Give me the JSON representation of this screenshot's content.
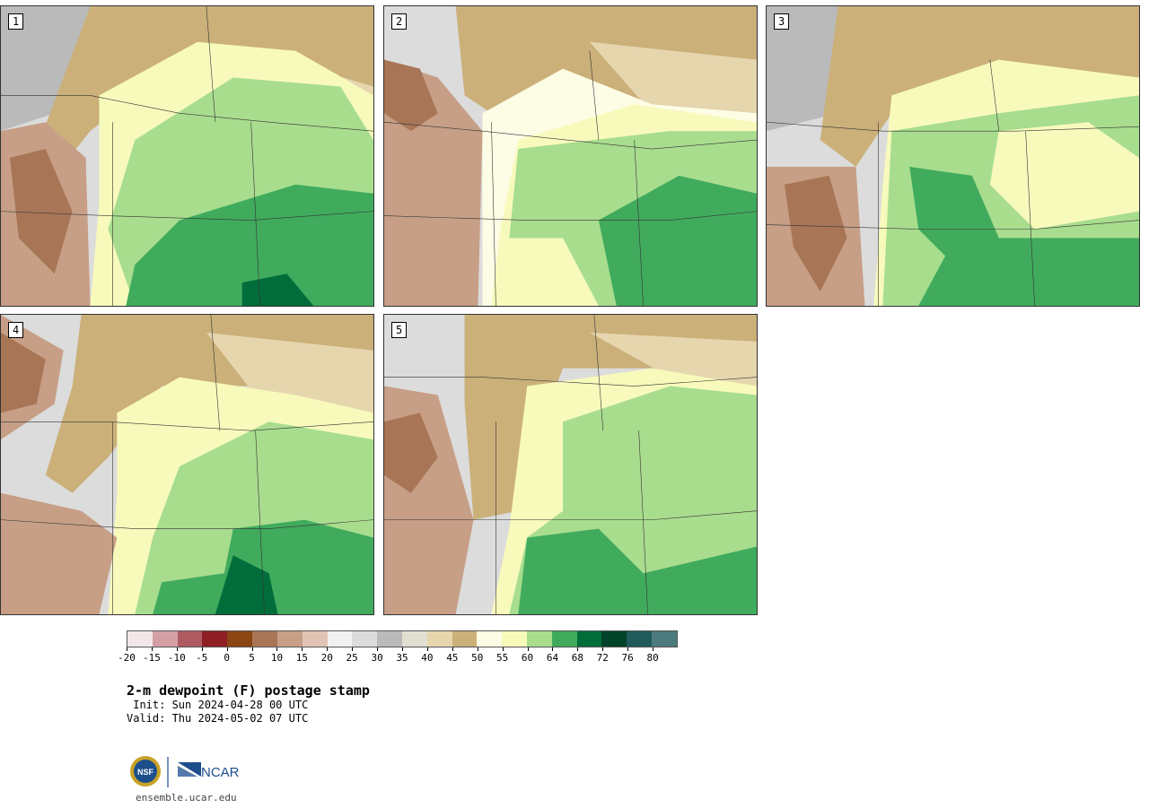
{
  "panels": [
    {
      "label": "1"
    },
    {
      "label": "2"
    },
    {
      "label": "3"
    },
    {
      "label": "4"
    },
    {
      "label": "5"
    }
  ],
  "colorbar": {
    "colors": [
      "#f3e6e8",
      "#d4a0a6",
      "#b05a62",
      "#8e1f25",
      "#8a4513",
      "#a87656",
      "#c79f86",
      "#e1c4b3",
      "#f2f2f2",
      "#dcdcdc",
      "#bababa",
      "#e0dfd2",
      "#e6d6ae",
      "#cbb07a",
      "#fdfde6",
      "#f7fabb",
      "#a8dd8e",
      "#41ab5d",
      "#006d3b",
      "#00432a",
      "#1f5b5b",
      "#4d7a7c"
    ],
    "tick_labels": [
      "-20",
      "-15",
      "-10",
      "-5",
      "0",
      "5",
      "10",
      "15",
      "20",
      "25",
      "30",
      "35",
      "40",
      "45",
      "50",
      "55",
      "60",
      "64",
      "68",
      "72",
      "76",
      "80"
    ]
  },
  "title": "2-m dewpoint (F) postage stamp",
  "init": " Init: Sun 2024-04-28 00 UTC",
  "valid": "Valid: Thu 2024-05-02 07 UTC",
  "logos": {
    "nsf": "NSF",
    "ncar": "NCAR"
  },
  "site": "ensemble.ucar.edu"
}
